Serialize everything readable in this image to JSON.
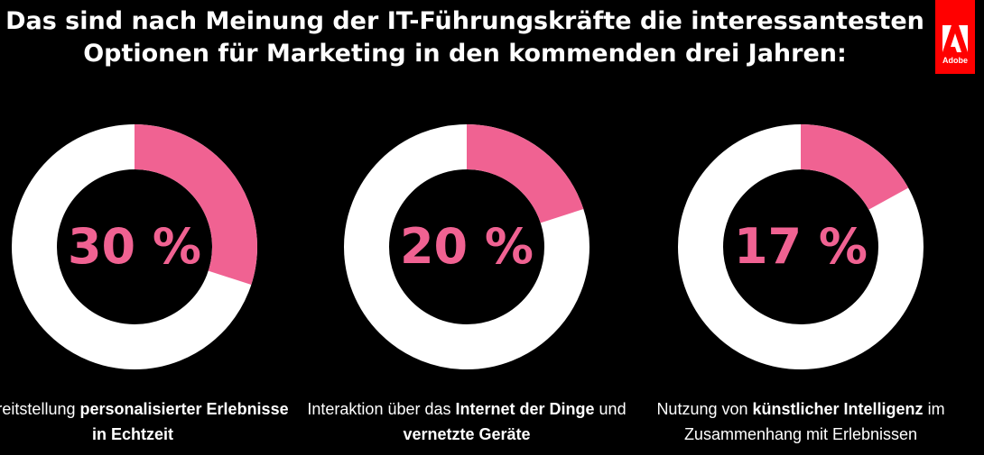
{
  "title": "Das sind nach Meinung der IT-Führungskräfte die interessantesten Optionen für Marketing in den kommenden drei Jahren:",
  "brand": {
    "name": "Adobe",
    "color": "#ff0000"
  },
  "colors": {
    "accent": "#f06292",
    "ring": "#ffffff",
    "background": "#000000"
  },
  "chart_data": [
    {
      "type": "pie",
      "donut": true,
      "value": 30,
      "value_label": "30 %",
      "caption": {
        "parts": [
          {
            "text": "Bereitstellung ",
            "bold": false
          },
          {
            "text": "personalisierter Erlebnisse in Echtzeit",
            "bold": true
          }
        ]
      }
    },
    {
      "type": "pie",
      "donut": true,
      "value": 20,
      "value_label": "20 %",
      "caption": {
        "parts": [
          {
            "text": "Interaktion über das ",
            "bold": false
          },
          {
            "text": "Internet der Dinge",
            "bold": true
          },
          {
            "text": " und ",
            "bold": false
          },
          {
            "text": "vernetzte Geräte",
            "bold": true
          }
        ]
      }
    },
    {
      "type": "pie",
      "donut": true,
      "value": 17,
      "value_label": "17 %",
      "caption": {
        "parts": [
          {
            "text": "Nutzung von ",
            "bold": false
          },
          {
            "text": "künstlicher Intelligenz",
            "bold": true
          },
          {
            "text": " im Zusammenhang mit Erlebnissen",
            "bold": false
          }
        ]
      }
    }
  ]
}
